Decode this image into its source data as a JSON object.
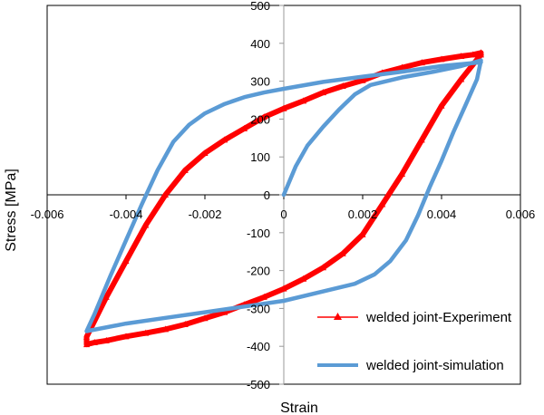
{
  "chart_data": {
    "type": "line",
    "title": "",
    "xlabel": "Strain",
    "ylabel": "Stress [MPa]",
    "xlim": [
      -0.006,
      0.006
    ],
    "ylim": [
      -500,
      500
    ],
    "x_ticks": [
      -0.006,
      -0.004,
      -0.002,
      0,
      0.002,
      0.004,
      0.006
    ],
    "x_tick_labels": [
      "-0.006",
      "-0.004",
      "-0.002",
      "0",
      "0.002",
      "0.004",
      "0.006"
    ],
    "y_ticks": [
      -500,
      -400,
      -300,
      -200,
      -100,
      0,
      100,
      200,
      300,
      400,
      500
    ],
    "y_tick_labels": [
      "-500",
      "-400",
      "-300",
      "-200",
      "-100",
      "0",
      "100",
      "200",
      "300",
      "400",
      "500"
    ],
    "grid": false,
    "legend_position": "bottom-right",
    "series": [
      {
        "name": "welded joint-Experiment",
        "color": "#ff0000",
        "marker": "triangle",
        "x": [
          0.005,
          0.0048,
          0.0045,
          0.004,
          0.0035,
          0.003,
          0.0025,
          0.002,
          0.0015,
          0.001,
          0.0005,
          0,
          -0.0005,
          -0.001,
          -0.0015,
          -0.002,
          -0.0025,
          -0.003,
          -0.0035,
          -0.004,
          -0.0045,
          -0.005,
          -0.005,
          -0.0048,
          -0.0045,
          -0.004,
          -0.0035,
          -0.003,
          -0.0025,
          -0.002,
          -0.0015,
          -0.001,
          -0.0005,
          0,
          0.0005,
          0.001,
          0.0015,
          0.002,
          0.0025,
          0.003,
          0.0035,
          0.004,
          0.0045,
          0.005
        ],
        "y": [
          375,
          370,
          366,
          358,
          349,
          336,
          322,
          302,
          287,
          270,
          248,
          228,
          205,
          175,
          145,
          110,
          65,
          0,
          -80,
          -175,
          -270,
          -375,
          -395,
          -390,
          -385,
          -374,
          -365,
          -355,
          -342,
          -326,
          -310,
          -290,
          -270,
          -248,
          -222,
          -192,
          -155,
          -105,
          -25,
          55,
          145,
          235,
          305,
          370
        ]
      },
      {
        "name": "welded joint-simulation",
        "color": "#5b9bd5",
        "marker": "none",
        "x": [
          0,
          0.0003,
          0.0006,
          0.001,
          0.0014,
          0.0018,
          0.0022,
          0.003,
          0.0038,
          0.0045,
          0.005,
          0.0049,
          0.0046,
          0.0043,
          0.004,
          0.0037,
          0.0034,
          0.0031,
          0.0027,
          0.0023,
          0.0018,
          0.001,
          0,
          -0.001,
          -0.002,
          -0.003,
          -0.004,
          -0.005,
          -0.0048,
          -0.0044,
          -0.004,
          -0.0036,
          -0.0032,
          -0.0028,
          -0.0024,
          -0.002,
          -0.0015,
          -0.001,
          -0.0005,
          0,
          0.001,
          0.002,
          0.003,
          0.004,
          0.005
        ],
        "y": [
          0,
          75,
          130,
          180,
          225,
          265,
          290,
          310,
          325,
          340,
          355,
          305,
          235,
          165,
          90,
          20,
          -55,
          -120,
          -175,
          -210,
          -235,
          -255,
          -280,
          -295,
          -310,
          -325,
          -340,
          -360,
          -315,
          -215,
          -120,
          -25,
          65,
          140,
          185,
          215,
          240,
          258,
          270,
          280,
          298,
          312,
          325,
          340,
          350
        ]
      }
    ]
  }
}
